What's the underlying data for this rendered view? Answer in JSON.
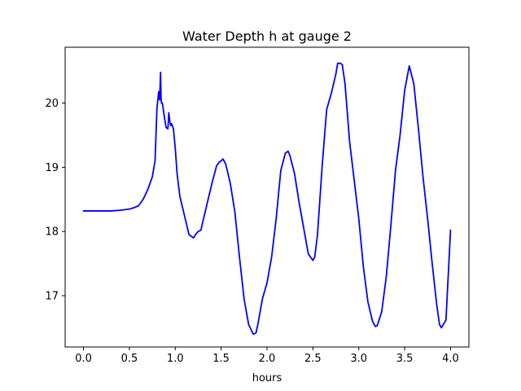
{
  "chart_data": {
    "type": "line",
    "title": "Water Depth h at gauge 2",
    "xlabel": "hours",
    "ylabel": "",
    "xlim": [
      -0.2,
      4.2
    ],
    "ylim": [
      16.2,
      20.87
    ],
    "xticks": [
      0.0,
      0.5,
      1.0,
      1.5,
      2.0,
      2.5,
      3.0,
      3.5,
      4.0
    ],
    "xtick_labels": [
      "0.0",
      "0.5",
      "1.0",
      "1.5",
      "2.0",
      "2.5",
      "3.0",
      "3.5",
      "4.0"
    ],
    "yticks": [
      17,
      18,
      19,
      20
    ],
    "ytick_labels": [
      "17",
      "18",
      "19",
      "20"
    ],
    "grid": false,
    "series": [
      {
        "color": "#0000ff",
        "x": [
          0.0,
          0.1,
          0.2,
          0.3,
          0.4,
          0.5,
          0.55,
          0.6,
          0.65,
          0.7,
          0.75,
          0.78,
          0.8,
          0.81,
          0.82,
          0.83,
          0.84,
          0.845,
          0.85,
          0.86,
          0.87,
          0.88,
          0.9,
          0.92,
          0.93,
          0.94,
          0.95,
          0.96,
          0.98,
          1.0,
          1.02,
          1.05,
          1.1,
          1.15,
          1.2,
          1.22,
          1.25,
          1.28,
          1.3,
          1.35,
          1.4,
          1.45,
          1.48,
          1.5,
          1.52,
          1.55,
          1.6,
          1.65,
          1.7,
          1.75,
          1.8,
          1.85,
          1.88,
          1.9,
          1.95,
          2.0,
          2.05,
          2.1,
          2.15,
          2.2,
          2.23,
          2.25,
          2.3,
          2.35,
          2.4,
          2.45,
          2.5,
          2.52,
          2.55,
          2.6,
          2.65,
          2.7,
          2.75,
          2.77,
          2.8,
          2.82,
          2.85,
          2.9,
          2.95,
          3.0,
          3.05,
          3.1,
          3.15,
          3.18,
          3.2,
          3.25,
          3.3,
          3.35,
          3.4,
          3.45,
          3.5,
          3.52,
          3.55,
          3.6,
          3.65,
          3.7,
          3.75,
          3.8,
          3.85,
          3.88,
          3.9,
          3.95,
          4.0
        ],
        "y": [
          18.32,
          18.32,
          18.32,
          18.32,
          18.33,
          18.35,
          18.37,
          18.4,
          18.5,
          18.65,
          18.85,
          19.1,
          19.9,
          20.05,
          20.18,
          20.05,
          20.48,
          20.1,
          20.0,
          20.0,
          19.9,
          19.8,
          19.62,
          19.6,
          19.85,
          19.72,
          19.65,
          19.68,
          19.6,
          19.3,
          18.9,
          18.55,
          18.25,
          17.95,
          17.9,
          17.95,
          18.0,
          18.02,
          18.15,
          18.45,
          18.75,
          19.02,
          19.08,
          19.1,
          19.13,
          19.05,
          18.75,
          18.3,
          17.6,
          16.95,
          16.55,
          16.4,
          16.42,
          16.55,
          16.95,
          17.2,
          17.6,
          18.2,
          18.95,
          19.22,
          19.25,
          19.18,
          18.9,
          18.45,
          18.05,
          17.65,
          17.55,
          17.6,
          17.95,
          19.0,
          19.9,
          20.15,
          20.45,
          20.62,
          20.62,
          20.6,
          20.3,
          19.4,
          18.8,
          18.2,
          17.45,
          16.9,
          16.6,
          16.52,
          16.53,
          16.75,
          17.3,
          18.1,
          18.95,
          19.5,
          20.2,
          20.35,
          20.58,
          20.3,
          19.6,
          18.85,
          18.2,
          17.5,
          16.85,
          16.55,
          16.5,
          16.62,
          18.02
        ]
      }
    ]
  }
}
